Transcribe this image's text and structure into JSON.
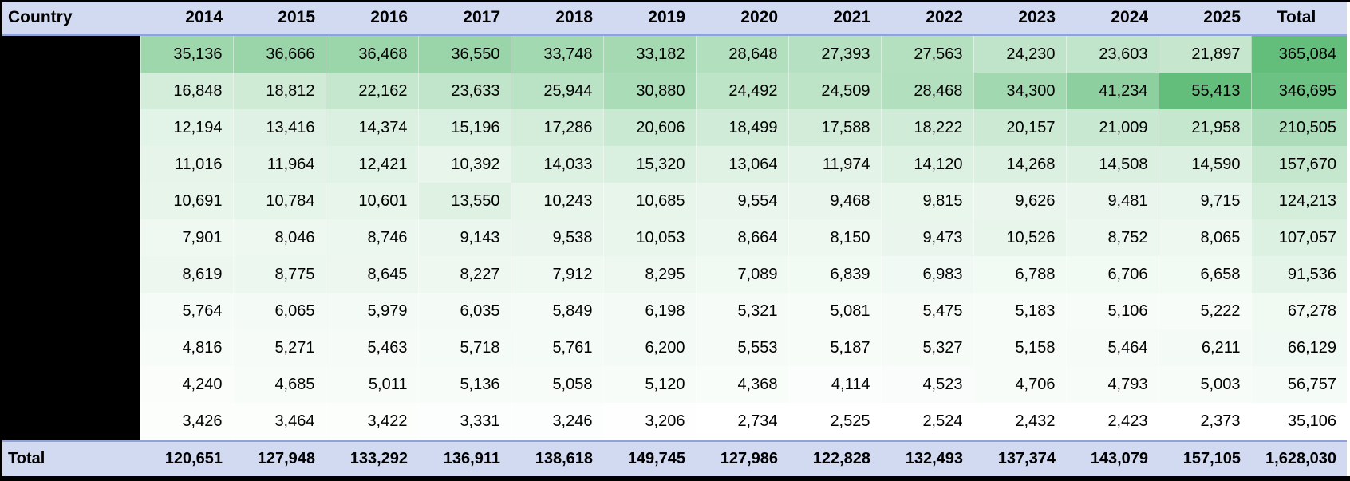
{
  "table": {
    "header": {
      "country_label": "Country",
      "total_label": "Total"
    },
    "total_row_label": "Total"
  },
  "colors": {
    "header_bg": "#d2daf2",
    "header_rule": "#8fa3d8",
    "frame_border": "#000000",
    "redaction": "#000000",
    "text": "#000000",
    "scale_min": "#ffffff",
    "scale_max": "#63be7b"
  },
  "chart_data": {
    "type": "heatmap",
    "title": "",
    "columns": [
      "2014",
      "2015",
      "2016",
      "2017",
      "2018",
      "2019",
      "2020",
      "2021",
      "2022",
      "2023",
      "2024",
      "2025",
      "Total"
    ],
    "row_label_column": "Country",
    "row_labels_redacted": true,
    "rows": [
      [
        35136,
        36666,
        36468,
        36550,
        33748,
        33182,
        28648,
        27393,
        27563,
        24230,
        23603,
        21897
      ],
      [
        16848,
        18812,
        22162,
        23633,
        25944,
        30880,
        24492,
        24509,
        28468,
        34300,
        41234,
        55413
      ],
      [
        12194,
        13416,
        14374,
        15196,
        17286,
        20606,
        18499,
        17588,
        18222,
        20157,
        21009,
        21958
      ],
      [
        11016,
        11964,
        12421,
        10392,
        14033,
        15320,
        13064,
        11974,
        14120,
        14268,
        14508,
        14590
      ],
      [
        10691,
        10784,
        10601,
        13550,
        10243,
        10685,
        9554,
        9468,
        9815,
        9626,
        9481,
        9715
      ],
      [
        7901,
        8046,
        8746,
        9143,
        9538,
        10053,
        8664,
        8150,
        9473,
        10526,
        8752,
        8065
      ],
      [
        8619,
        8775,
        8645,
        8227,
        7912,
        8295,
        7089,
        6839,
        6983,
        6788,
        6706,
        6658
      ],
      [
        5764,
        6065,
        5979,
        6035,
        5849,
        6198,
        5321,
        5081,
        5475,
        5183,
        5106,
        5222
      ],
      [
        4816,
        5271,
        5463,
        5718,
        5761,
        6200,
        5553,
        5187,
        5327,
        5158,
        5464,
        6211
      ],
      [
        4240,
        4685,
        5011,
        5136,
        5058,
        5120,
        4368,
        4114,
        4523,
        4706,
        4793,
        5003
      ],
      [
        3426,
        3464,
        3422,
        3331,
        3246,
        3206,
        2734,
        2525,
        2524,
        2432,
        2423,
        2373
      ]
    ],
    "row_totals": [
      365084,
      346695,
      210505,
      157670,
      124213,
      107057,
      91536,
      67278,
      66129,
      56757,
      35106
    ],
    "column_totals": [
      120651,
      127948,
      133292,
      136911,
      138618,
      149745,
      127986,
      122828,
      132493,
      137374,
      143079,
      157105
    ],
    "grand_total": 1628030,
    "legend_position": "none",
    "grid": false,
    "color_scale_note": "white-to-green scale; data cells scaled over all year values, Total column scaled separately"
  }
}
